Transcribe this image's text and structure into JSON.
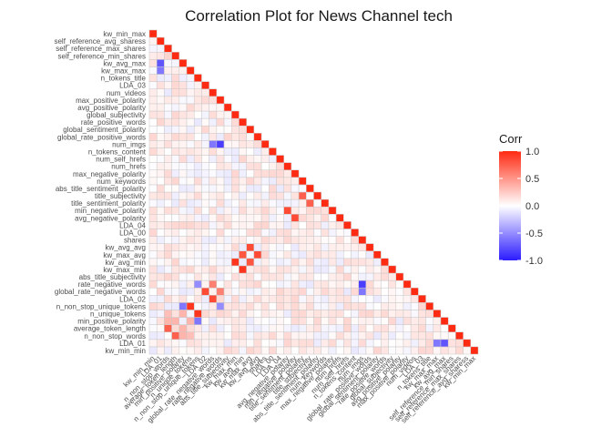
{
  "chart_data": {
    "type": "heatmap",
    "title": "Correlation Plot for News Channel tech",
    "legend_title": "Corr",
    "legend_ticks": [
      1.0,
      0.5,
      0.0,
      -0.5,
      -1.0
    ],
    "legend_tick_labels": [
      "1.0",
      "0.5",
      "0.0",
      "-0.5",
      "-1.0"
    ],
    "color_scale": {
      "low": "#2b1bff",
      "mid": "#ffffff",
      "high": "#ff2a12",
      "limits": [
        -1,
        1
      ]
    },
    "legend_position": "right",
    "lower_triangle": true,
    "variables": [
      "kw_min_min",
      "LDA_01",
      "n_non_stop_words",
      "average_token_length",
      "min_positive_polarity",
      "n_unique_tokens",
      "n_non_stop_unique_tokens",
      "LDA_02",
      "global_rate_negative_words",
      "rate_negative_words",
      "abs_title_subjectivity",
      "kw_max_min",
      "kw_avg_min",
      "kw_max_avg",
      "kw_avg_avg",
      "shares",
      "LDA_00",
      "LDA_04",
      "avg_negative_polarity",
      "min_negative_polarity",
      "title_sentiment_polarity",
      "title_subjectivity",
      "abs_title_sentiment_polarity",
      "num_keywords",
      "max_negative_polarity",
      "num_hrefs",
      "num_self_hrefs",
      "n_tokens_content",
      "num_imgs",
      "global_rate_positive_words",
      "global_sentiment_polarity",
      "rate_positive_words",
      "global_subjectivity",
      "avg_positive_polarity",
      "max_positive_polarity",
      "num_videos",
      "LDA_03",
      "n_tokens_title",
      "kw_max_max",
      "kw_avg_max",
      "self_reference_min_shares",
      "self_reference_max_shares",
      "self_reference_avg_sharess",
      "kw_min_max"
    ],
    "strong_correlations": [
      {
        "x": "kw_min_min",
        "y": "LDA_01",
        "value": 0.05
      },
      {
        "x": "n_non_stop_words",
        "y": "average_token_length",
        "value": 0.75
      },
      {
        "x": "n_non_stop_words",
        "y": "min_positive_polarity",
        "value": 0.35
      },
      {
        "x": "average_token_length",
        "y": "min_positive_polarity",
        "value": 0.35
      },
      {
        "x": "n_non_stop_words",
        "y": "n_unique_tokens",
        "value": 0.3
      },
      {
        "x": "min_positive_polarity",
        "y": "n_unique_tokens",
        "value": 0.35
      },
      {
        "x": "n_unique_tokens",
        "y": "n_non_stop_unique_tokens",
        "value": 0.95
      },
      {
        "x": "LDA_02",
        "y": "global_rate_negative_words",
        "value": 0.85
      },
      {
        "x": "global_rate_negative_words",
        "y": "rate_negative_words",
        "value": 0.6
      },
      {
        "x": "kw_max_min",
        "y": "kw_avg_min",
        "value": 0.95
      },
      {
        "x": "kw_avg_min",
        "y": "kw_max_avg",
        "value": 0.8
      },
      {
        "x": "kw_max_avg",
        "y": "kw_avg_avg",
        "value": 0.85
      },
      {
        "x": "avg_negative_polarity",
        "y": "min_negative_polarity",
        "value": 0.85
      },
      {
        "x": "title_sentiment_polarity",
        "y": "title_subjectivity",
        "value": 0.75
      },
      {
        "x": "title_subjectivity",
        "y": "abs_title_sentiment_polarity",
        "value": 0.65
      },
      {
        "x": "num_hrefs",
        "y": "num_self_hrefs",
        "value": 0.6
      },
      {
        "x": "num_hrefs",
        "y": "n_tokens_content",
        "value": 0.55
      },
      {
        "x": "global_rate_positive_words",
        "y": "global_sentiment_polarity",
        "value": 0.7
      },
      {
        "x": "global_sentiment_polarity",
        "y": "rate_positive_words",
        "value": 0.7
      },
      {
        "x": "rate_positive_words",
        "y": "global_subjectivity",
        "value": 0.6
      },
      {
        "x": "global_subjectivity",
        "y": "avg_positive_polarity",
        "value": 0.55
      },
      {
        "x": "avg_positive_polarity",
        "y": "max_positive_polarity",
        "value": 0.6
      },
      {
        "x": "kw_max_max",
        "y": "kw_avg_max",
        "value": 0.6
      },
      {
        "x": "self_reference_min_shares",
        "y": "self_reference_max_shares",
        "value": 0.85
      },
      {
        "x": "self_reference_max_shares",
        "y": "self_reference_avg_sharess",
        "value": 0.5
      },
      {
        "x": "kw_min_max",
        "y": "self_reference_avg_sharess",
        "value": 0.4
      },
      {
        "x": "rate_negative_words",
        "y": "num_imgs",
        "value": -0.85
      },
      {
        "x": "global_rate_negative_words",
        "y": "num_imgs",
        "value": -0.6
      },
      {
        "x": "n_non_stop_unique_tokens",
        "y": "rate_negative_words",
        "value": -0.5
      },
      {
        "x": "min_positive_polarity",
        "y": "n_non_stop_unique_tokens",
        "value": -0.6
      },
      {
        "x": "kw_avg_max",
        "y": "LDA_01",
        "value": -0.75
      },
      {
        "x": "kw_max_max",
        "y": "LDA_01",
        "value": -0.6
      }
    ]
  }
}
